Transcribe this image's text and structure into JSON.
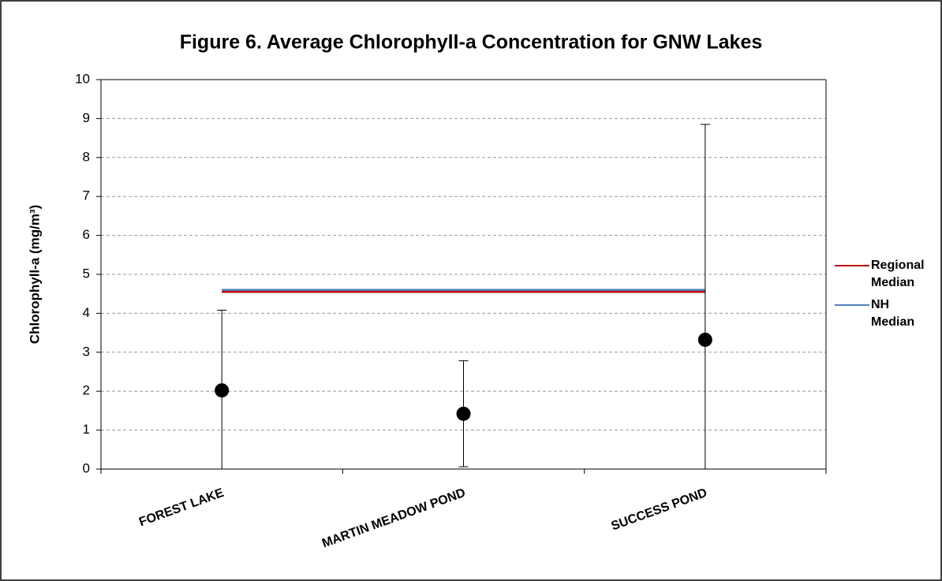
{
  "chart_data": {
    "type": "scatter",
    "title": "Figure 6.  Average Chlorophyll-a Concentration for GNW Lakes",
    "y_label": "Chlorophyll-a (mg/m³)",
    "categories": [
      "FOREST LAKE",
      "MARTIN MEADOW POND",
      "SUCCESS POND"
    ],
    "values": [
      2.02,
      1.42,
      3.32
    ],
    "errors": [
      2.06,
      1.36,
      5.53
    ],
    "color": "#000000",
    "reference_lines": [
      {
        "name": "Regional Median",
        "color": "#c00000",
        "value": 4.55
      },
      {
        "name": "NH Median",
        "color": "#4f81bd",
        "value": 4.6
      }
    ],
    "ylim": [
      0,
      10
    ],
    "yticks": [
      0,
      1,
      2,
      3,
      4,
      5,
      6,
      7,
      8,
      9,
      10
    ],
    "grid": true
  }
}
